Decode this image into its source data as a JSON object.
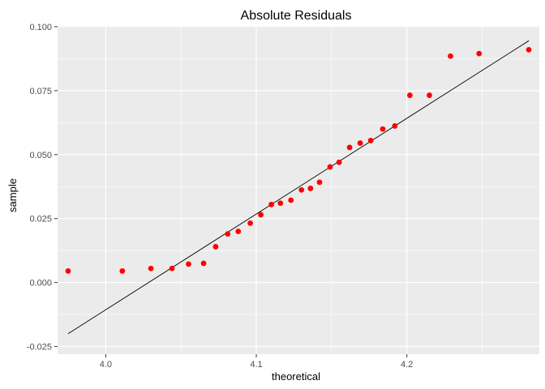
{
  "chart_data": {
    "type": "scatter",
    "title": "Absolute Residuals",
    "xlabel": "theoretical",
    "ylabel": "sample",
    "xlim": [
      3.968,
      4.288
    ],
    "ylim": [
      -0.028,
      0.1003
    ],
    "x_ticks": [
      4.0,
      4.1,
      4.2
    ],
    "x_tick_labels": [
      "4.0",
      "4.1",
      "4.2"
    ],
    "y_ticks": [
      -0.025,
      0.0,
      0.025,
      0.05,
      0.075,
      0.1
    ],
    "y_tick_labels": [
      "-0.025",
      "0.000",
      "0.025",
      "0.050",
      "0.075",
      "0.100"
    ],
    "grid": true,
    "panel_color": "#ebebeb",
    "point_color": "#ff0000",
    "line_color": "#000000",
    "points": [
      {
        "x": 3.975,
        "y": 0.0045
      },
      {
        "x": 4.011,
        "y": 0.0045
      },
      {
        "x": 4.03,
        "y": 0.0055
      },
      {
        "x": 4.044,
        "y": 0.0055
      },
      {
        "x": 4.055,
        "y": 0.0072
      },
      {
        "x": 4.065,
        "y": 0.0075
      },
      {
        "x": 4.073,
        "y": 0.014
      },
      {
        "x": 4.081,
        "y": 0.019
      },
      {
        "x": 4.088,
        "y": 0.02
      },
      {
        "x": 4.096,
        "y": 0.0232
      },
      {
        "x": 4.103,
        "y": 0.0265
      },
      {
        "x": 4.11,
        "y": 0.0305
      },
      {
        "x": 4.116,
        "y": 0.031
      },
      {
        "x": 4.123,
        "y": 0.0322
      },
      {
        "x": 4.13,
        "y": 0.0362
      },
      {
        "x": 4.136,
        "y": 0.0368
      },
      {
        "x": 4.142,
        "y": 0.0392
      },
      {
        "x": 4.149,
        "y": 0.0452
      },
      {
        "x": 4.155,
        "y": 0.047
      },
      {
        "x": 4.162,
        "y": 0.0528
      },
      {
        "x": 4.169,
        "y": 0.0545
      },
      {
        "x": 4.176,
        "y": 0.0555
      },
      {
        "x": 4.184,
        "y": 0.06
      },
      {
        "x": 4.192,
        "y": 0.0612
      },
      {
        "x": 4.202,
        "y": 0.0732
      },
      {
        "x": 4.215,
        "y": 0.0732
      },
      {
        "x": 4.229,
        "y": 0.0885
      },
      {
        "x": 4.248,
        "y": 0.0895
      },
      {
        "x": 4.281,
        "y": 0.091
      }
    ],
    "reference_line": {
      "x": [
        3.975,
        4.281
      ],
      "y": [
        -0.02,
        0.0945
      ]
    }
  }
}
